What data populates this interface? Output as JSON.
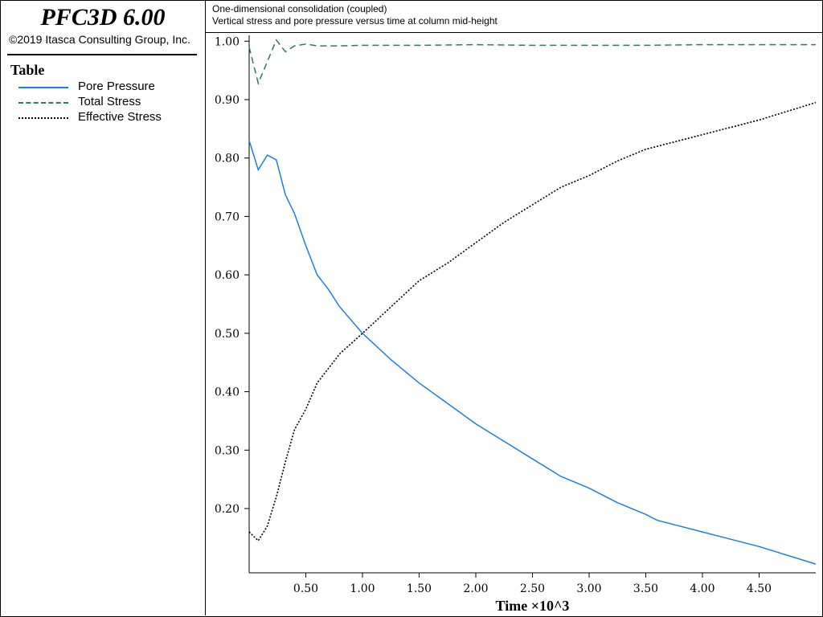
{
  "app": {
    "title": "PFC3D 6.00",
    "copyright": "©2019 Itasca Consulting Group, Inc."
  },
  "legend": {
    "title": "Table",
    "items": [
      {
        "label": "Pore Pressure",
        "color": "#1e7fd8",
        "style": "solid"
      },
      {
        "label": "Total Stress",
        "color": "#2e7d50",
        "style": "dashed"
      },
      {
        "label": "Effective Stress",
        "color": "#000000",
        "style": "dotted"
      }
    ]
  },
  "chart_data": {
    "type": "line",
    "title": "One-dimensional consolidation (coupled)",
    "subtitle": "Vertical stress and pore pressure versus time at column mid-height",
    "xlabel": "Time ×10^3",
    "ylabel": "",
    "xlim": [
      0,
      5.0
    ],
    "ylim": [
      0.09,
      1.01
    ],
    "x_ticks": [
      0.5,
      1.0,
      1.5,
      2.0,
      2.5,
      3.0,
      3.5,
      4.0,
      4.5
    ],
    "x_tick_labels": [
      "0.50",
      "1.00",
      "1.50",
      "2.00",
      "2.50",
      "3.00",
      "3.50",
      "4.00",
      "4.50"
    ],
    "y_ticks": [
      0.2,
      0.3,
      0.4,
      0.5,
      0.6,
      0.7,
      0.8,
      0.9,
      1.0
    ],
    "y_tick_labels": [
      "0.20",
      "0.30",
      "0.40",
      "0.50",
      "0.60",
      "0.70",
      "0.80",
      "0.90",
      "1.00"
    ],
    "grid": false,
    "series": [
      {
        "name": "Pore Pressure",
        "color": "#1e7fd8",
        "style": "solid",
        "x": [
          0.0,
          0.08,
          0.16,
          0.24,
          0.32,
          0.4,
          0.5,
          0.6,
          0.7,
          0.8,
          1.0,
          1.25,
          1.5,
          1.75,
          2.0,
          2.25,
          2.5,
          2.75,
          3.0,
          3.25,
          3.5,
          3.6,
          4.0,
          4.5,
          5.0
        ],
        "y": [
          0.83,
          0.78,
          0.805,
          0.797,
          0.737,
          0.705,
          0.65,
          0.6,
          0.575,
          0.545,
          0.5,
          0.455,
          0.415,
          0.38,
          0.345,
          0.315,
          0.285,
          0.255,
          0.235,
          0.21,
          0.19,
          0.18,
          0.16,
          0.135,
          0.105
        ]
      },
      {
        "name": "Total Stress",
        "color": "#2e7d50",
        "style": "dashed",
        "x": [
          0.0,
          0.08,
          0.16,
          0.24,
          0.32,
          0.4,
          0.5,
          0.6,
          0.8,
          1.0,
          1.5,
          2.0,
          2.5,
          3.0,
          3.5,
          4.0,
          4.5,
          5.0
        ],
        "y": [
          0.99,
          0.928,
          0.965,
          1.002,
          0.982,
          0.992,
          0.995,
          0.992,
          0.992,
          0.993,
          0.993,
          0.994,
          0.993,
          0.993,
          0.993,
          0.994,
          0.994,
          0.994
        ]
      },
      {
        "name": "Effective Stress",
        "color": "#000000",
        "style": "dotted",
        "x": [
          0.0,
          0.08,
          0.16,
          0.24,
          0.32,
          0.4,
          0.5,
          0.6,
          0.7,
          0.8,
          1.0,
          1.25,
          1.5,
          1.75,
          2.0,
          2.25,
          2.5,
          2.75,
          3.0,
          3.25,
          3.5,
          3.6,
          4.0,
          4.5,
          5.0
        ],
        "y": [
          0.16,
          0.145,
          0.17,
          0.22,
          0.28,
          0.335,
          0.37,
          0.415,
          0.44,
          0.465,
          0.5,
          0.545,
          0.59,
          0.62,
          0.655,
          0.69,
          0.72,
          0.75,
          0.77,
          0.795,
          0.815,
          0.82,
          0.84,
          0.865,
          0.895
        ]
      }
    ]
  }
}
